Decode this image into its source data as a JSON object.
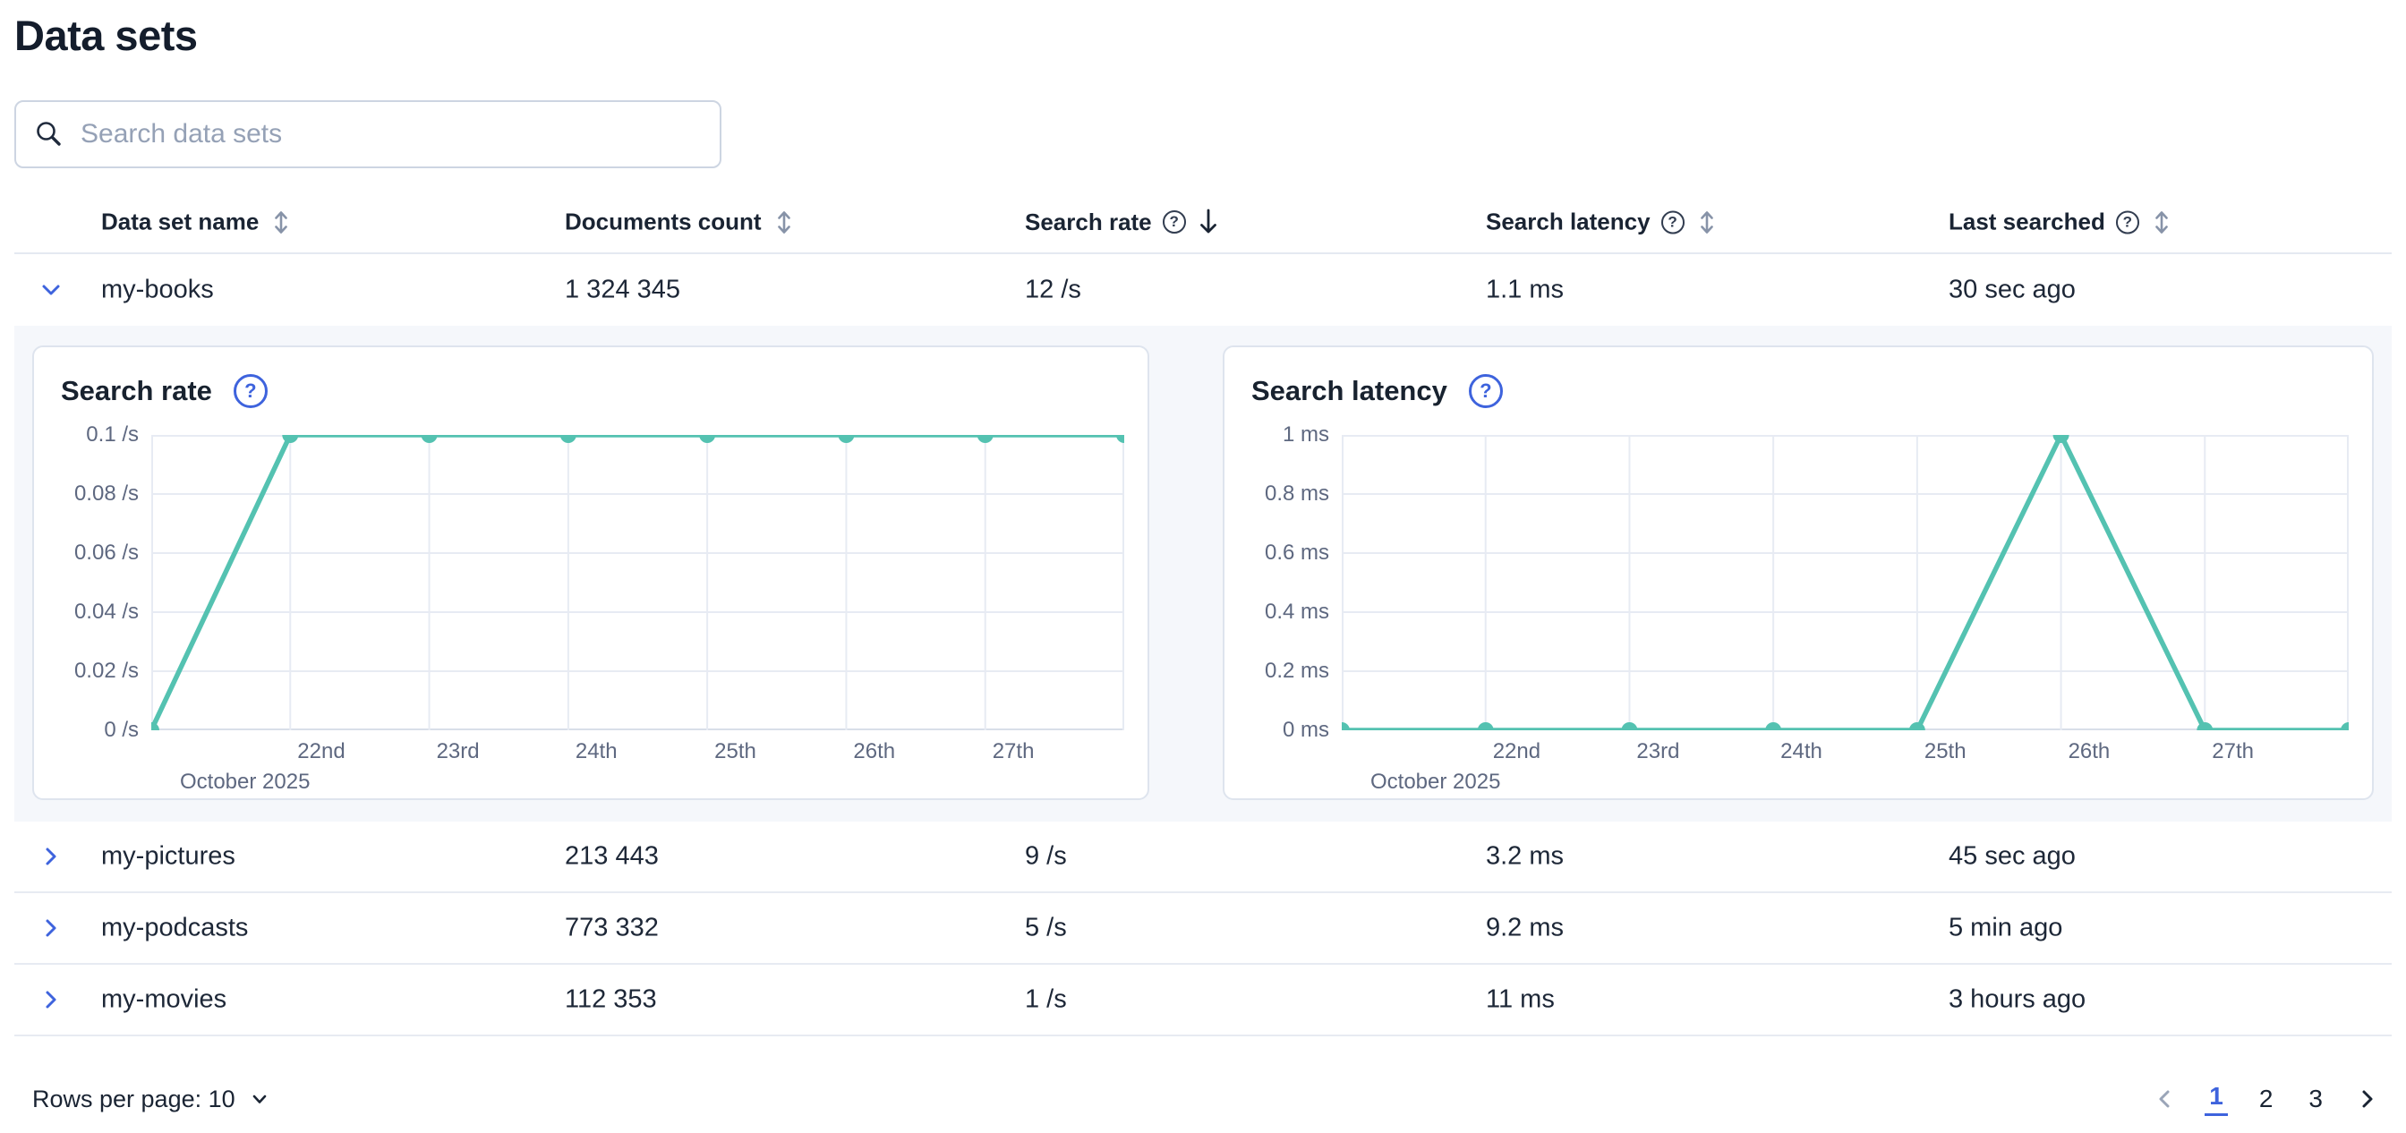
{
  "page": {
    "title": "Data sets"
  },
  "search": {
    "placeholder": "Search data sets"
  },
  "colors": {
    "accent_blue": "#3E63DD",
    "chart_line": "#54C2B1",
    "text": "#1A2433",
    "subdued_text": "#5E6880",
    "grid": "#E7EBF3",
    "axis": "#D9DFE9",
    "row_border": "#E7EBF2",
    "expanded_bg": "#F5F7FB",
    "panel_border": "#DEE4EE",
    "sort_inactive": "#8793A8"
  },
  "icons": {
    "search": "magnifier",
    "sortable": "double-headed-vertical-arrow",
    "sort_desc": "down-arrow",
    "help": "question-circle",
    "expand_collapsed": "chevron-right",
    "expand_open": "chevron-down",
    "rows_per_page": "chevron-down",
    "prev_page": "chevron-left",
    "next_page": "chevron-right"
  },
  "table": {
    "columns": [
      {
        "label": "Data set name",
        "help": false,
        "sort": "sortable"
      },
      {
        "label": "Documents count",
        "help": false,
        "sort": "sortable"
      },
      {
        "label": "Search rate",
        "help": true,
        "sort": "desc"
      },
      {
        "label": "Search latency",
        "help": true,
        "sort": "sortable"
      },
      {
        "label": "Last searched",
        "help": true,
        "sort": "sortable"
      }
    ],
    "rows": [
      {
        "name": "my-books",
        "documents": "1 324 345",
        "rate": "12 /s",
        "latency": "1.1 ms",
        "last": "30 sec ago",
        "expanded": true
      },
      {
        "name": "my-pictures",
        "documents": "213 443",
        "rate": "9 /s",
        "latency": "3.2 ms",
        "last": "45 sec ago",
        "expanded": false
      },
      {
        "name": "my-podcasts",
        "documents": "773 332",
        "rate": "5 /s",
        "latency": "9.2 ms",
        "last": "5 min ago",
        "expanded": false
      },
      {
        "name": "my-movies",
        "documents": "112 353",
        "rate": "1 /s",
        "latency": "11 ms",
        "last": "3 hours ago",
        "expanded": false
      }
    ]
  },
  "chart_data": [
    {
      "type": "line",
      "title": "Search rate",
      "x": [
        0,
        1,
        2,
        3,
        4,
        5,
        6,
        7
      ],
      "values": [
        0,
        0.1,
        0.1,
        0.1,
        0.1,
        0.1,
        0.1,
        0.1
      ],
      "x_labels": [
        "22nd",
        "23rd",
        "24th",
        "25th",
        "26th",
        "27th"
      ],
      "x_axis_caption": "October 2025",
      "ylim": [
        0,
        0.1
      ],
      "y_ticks": [
        {
          "v": 0.1,
          "label": "0.1 /s"
        },
        {
          "v": 0.08,
          "label": "0.08 /s"
        },
        {
          "v": 0.06,
          "label": "0.06 /s"
        },
        {
          "v": 0.04,
          "label": "0.04 /s"
        },
        {
          "v": 0.02,
          "label": "0.02 /s"
        },
        {
          "v": 0,
          "label": "0 /s"
        }
      ],
      "grid": true,
      "legend": "none",
      "line_color": "#54C2B1"
    },
    {
      "type": "line",
      "title": "Search latency",
      "x": [
        0,
        1,
        2,
        3,
        4,
        5,
        6,
        7
      ],
      "values": [
        0,
        0,
        0,
        0,
        0,
        1,
        0,
        0
      ],
      "x_labels": [
        "22nd",
        "23rd",
        "24th",
        "25th",
        "26th",
        "27th"
      ],
      "x_axis_caption": "October 2025",
      "ylim": [
        0,
        1
      ],
      "y_ticks": [
        {
          "v": 1,
          "label": "1 ms"
        },
        {
          "v": 0.8,
          "label": "0.8 ms"
        },
        {
          "v": 0.6,
          "label": "0.6 ms"
        },
        {
          "v": 0.4,
          "label": "0.4 ms"
        },
        {
          "v": 0.2,
          "label": "0.2 ms"
        },
        {
          "v": 0,
          "label": "0 ms"
        }
      ],
      "grid": true,
      "legend": "none",
      "line_color": "#54C2B1"
    }
  ],
  "footer": {
    "rows_per_page_label": "Rows per page: 10",
    "pages": [
      "1",
      "2",
      "3"
    ],
    "active_page": "1"
  }
}
